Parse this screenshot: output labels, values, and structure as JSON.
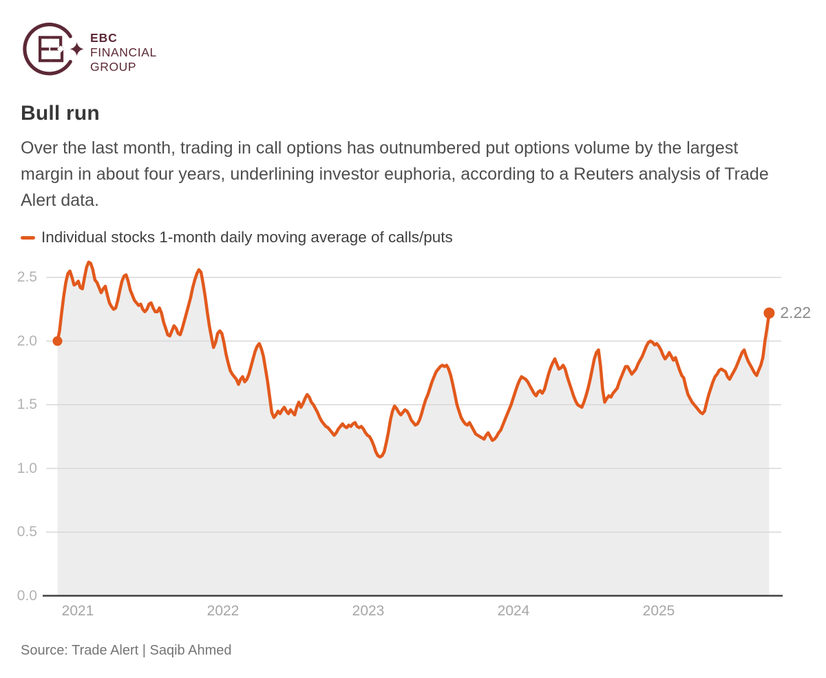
{
  "logo": {
    "line1": "EBC",
    "line2": "FINANCIAL",
    "line3": "GROUP",
    "color": "#5c2936"
  },
  "header": {
    "title": "Bull run",
    "description": "Over the last month, trading in call options has outnumbered put options volume by the largest margin in about four years, underlining investor euphoria, according to a Reuters analysis of Trade Alert data."
  },
  "legend": {
    "label": "Individual stocks 1-month daily moving average of calls/puts",
    "color": "#e2591c"
  },
  "source": "Source: Trade Alert | Saqib Ahmed",
  "chart_data": {
    "type": "area",
    "title": "Bull run",
    "series_name": "Individual stocks 1-month daily moving average of calls/puts",
    "line_color": "#e2591c",
    "fill_color": "#ededed",
    "grid_color": "#d7d7d7",
    "baseline_color": "#404040",
    "x_ticks": [
      "2021",
      "2022",
      "2023",
      "2024",
      "2025"
    ],
    "y_ticks": [
      "0.0",
      "0.5",
      "1.0",
      "1.5",
      "2.0",
      "2.5"
    ],
    "ylim": [
      0.0,
      2.65
    ],
    "x_start": 2020.86,
    "x_end": 2025.76,
    "end_label": "2.22",
    "last_value": 2.22,
    "first_value": 2.0,
    "values": [
      2.0,
      2.08,
      2.22,
      2.35,
      2.46,
      2.53,
      2.55,
      2.5,
      2.44,
      2.45,
      2.47,
      2.42,
      2.41,
      2.5,
      2.58,
      2.62,
      2.61,
      2.56,
      2.48,
      2.46,
      2.42,
      2.38,
      2.41,
      2.43,
      2.36,
      2.3,
      2.27,
      2.25,
      2.26,
      2.32,
      2.4,
      2.47,
      2.51,
      2.52,
      2.47,
      2.4,
      2.36,
      2.32,
      2.3,
      2.28,
      2.29,
      2.25,
      2.23,
      2.25,
      2.29,
      2.3,
      2.26,
      2.23,
      2.23,
      2.26,
      2.22,
      2.15,
      2.1,
      2.05,
      2.04,
      2.08,
      2.12,
      2.1,
      2.06,
      2.05,
      2.1,
      2.16,
      2.22,
      2.28,
      2.34,
      2.42,
      2.48,
      2.53,
      2.56,
      2.54,
      2.45,
      2.35,
      2.23,
      2.12,
      2.03,
      1.95,
      1.99,
      2.06,
      2.08,
      2.06,
      1.99,
      1.9,
      1.83,
      1.77,
      1.74,
      1.72,
      1.7,
      1.66,
      1.7,
      1.72,
      1.68,
      1.7,
      1.74,
      1.8,
      1.86,
      1.92,
      1.96,
      1.98,
      1.94,
      1.88,
      1.78,
      1.68,
      1.56,
      1.44,
      1.4,
      1.42,
      1.45,
      1.43,
      1.46,
      1.48,
      1.45,
      1.43,
      1.46,
      1.44,
      1.42,
      1.48,
      1.52,
      1.48,
      1.51,
      1.55,
      1.58,
      1.56,
      1.52,
      1.5,
      1.47,
      1.44,
      1.4,
      1.37,
      1.35,
      1.33,
      1.32,
      1.3,
      1.28,
      1.26,
      1.28,
      1.31,
      1.33,
      1.35,
      1.33,
      1.32,
      1.34,
      1.33,
      1.35,
      1.36,
      1.33,
      1.32,
      1.33,
      1.31,
      1.28,
      1.26,
      1.25,
      1.22,
      1.18,
      1.13,
      1.1,
      1.09,
      1.1,
      1.13,
      1.2,
      1.28,
      1.38,
      1.45,
      1.49,
      1.47,
      1.44,
      1.42,
      1.44,
      1.46,
      1.45,
      1.42,
      1.38,
      1.36,
      1.34,
      1.35,
      1.38,
      1.43,
      1.49,
      1.54,
      1.58,
      1.63,
      1.68,
      1.72,
      1.76,
      1.78,
      1.8,
      1.81,
      1.8,
      1.81,
      1.78,
      1.73,
      1.66,
      1.58,
      1.5,
      1.45,
      1.4,
      1.37,
      1.35,
      1.34,
      1.36,
      1.33,
      1.3,
      1.27,
      1.26,
      1.25,
      1.24,
      1.23,
      1.26,
      1.28,
      1.25,
      1.22,
      1.23,
      1.25,
      1.28,
      1.3,
      1.34,
      1.38,
      1.42,
      1.46,
      1.5,
      1.55,
      1.6,
      1.65,
      1.69,
      1.72,
      1.71,
      1.7,
      1.68,
      1.65,
      1.62,
      1.59,
      1.57,
      1.6,
      1.61,
      1.59,
      1.62,
      1.68,
      1.74,
      1.79,
      1.83,
      1.86,
      1.82,
      1.78,
      1.79,
      1.81,
      1.78,
      1.72,
      1.67,
      1.62,
      1.57,
      1.53,
      1.5,
      1.49,
      1.48,
      1.52,
      1.57,
      1.63,
      1.7,
      1.78,
      1.86,
      1.91,
      1.93,
      1.8,
      1.62,
      1.52,
      1.55,
      1.57,
      1.56,
      1.59,
      1.61,
      1.63,
      1.68,
      1.72,
      1.76,
      1.8,
      1.8,
      1.77,
      1.74,
      1.76,
      1.78,
      1.82,
      1.85,
      1.88,
      1.92,
      1.96,
      1.99,
      2.0,
      1.99,
      1.97,
      1.98,
      1.96,
      1.93,
      1.89,
      1.86,
      1.88,
      1.91,
      1.88,
      1.85,
      1.87,
      1.82,
      1.77,
      1.73,
      1.71,
      1.64,
      1.58,
      1.55,
      1.52,
      1.5,
      1.48,
      1.46,
      1.44,
      1.43,
      1.45,
      1.52,
      1.58,
      1.63,
      1.68,
      1.72,
      1.74,
      1.77,
      1.78,
      1.77,
      1.76,
      1.72,
      1.7,
      1.73,
      1.76,
      1.79,
      1.83,
      1.87,
      1.91,
      1.93,
      1.88,
      1.84,
      1.81,
      1.78,
      1.75,
      1.73,
      1.77,
      1.81,
      1.87,
      2.0,
      2.1,
      2.22
    ]
  }
}
